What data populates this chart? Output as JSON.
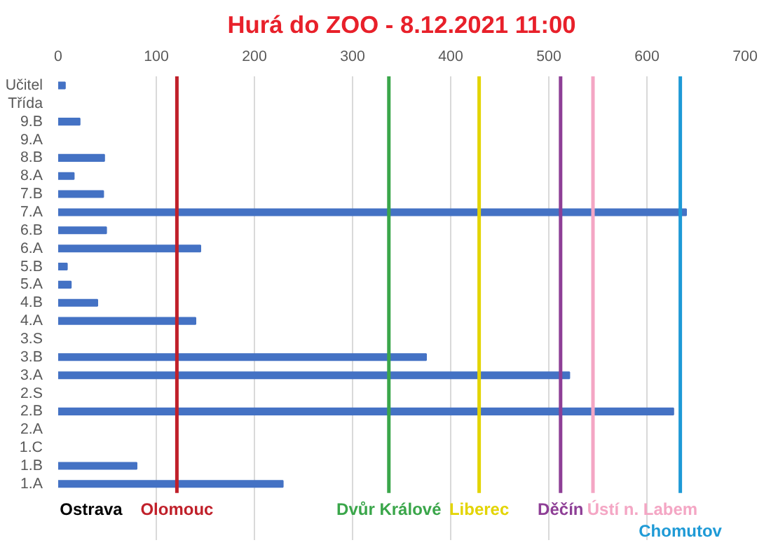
{
  "chart_data": {
    "type": "bar",
    "orientation": "horizontal",
    "title": "Hurá do ZOO - 8.12.2021 11:00",
    "categories": [
      "Učitel",
      "Třída",
      "9.B",
      "9.A",
      "8.B",
      "8.A",
      "7.B",
      "7.A",
      "6.B",
      "6.A",
      "5.B",
      "5.A",
      "4.B",
      "4.A",
      "3.S",
      "3.B",
      "3.A",
      "2.S",
      "2.B",
      "2.A",
      "1.C",
      "1.B",
      "1.A"
    ],
    "values": [
      7,
      null,
      22,
      null,
      47,
      16,
      46,
      640,
      49,
      145,
      9,
      13,
      40,
      140,
      null,
      375,
      521,
      null,
      627,
      null,
      null,
      80,
      229
    ],
    "color": "#4472c4",
    "xlim": [
      0,
      700
    ],
    "xticks": [
      0,
      100,
      200,
      300,
      400,
      500,
      600,
      700
    ],
    "grid": "x",
    "annotations": [
      "Ostrava"
    ],
    "ref_lines": [
      {
        "axis": "x",
        "value": 121,
        "label": "Olomouc",
        "color": "#c0202a"
      },
      {
        "axis": "x",
        "value": 337,
        "label": "Dvůr Králové",
        "color": "#3aa64a"
      },
      {
        "axis": "x",
        "value": 429,
        "label": "Liberec",
        "color": "#e3d400"
      },
      {
        "axis": "x",
        "value": 512,
        "label": "Děčín",
        "color": "#8e3f96"
      },
      {
        "axis": "x",
        "value": 545,
        "label": "Ústí n. Labem",
        "color": "#f4a6c4"
      },
      {
        "axis": "x",
        "value": 634,
        "label": "Chomutov",
        "color": "#1e9ad6"
      }
    ]
  }
}
